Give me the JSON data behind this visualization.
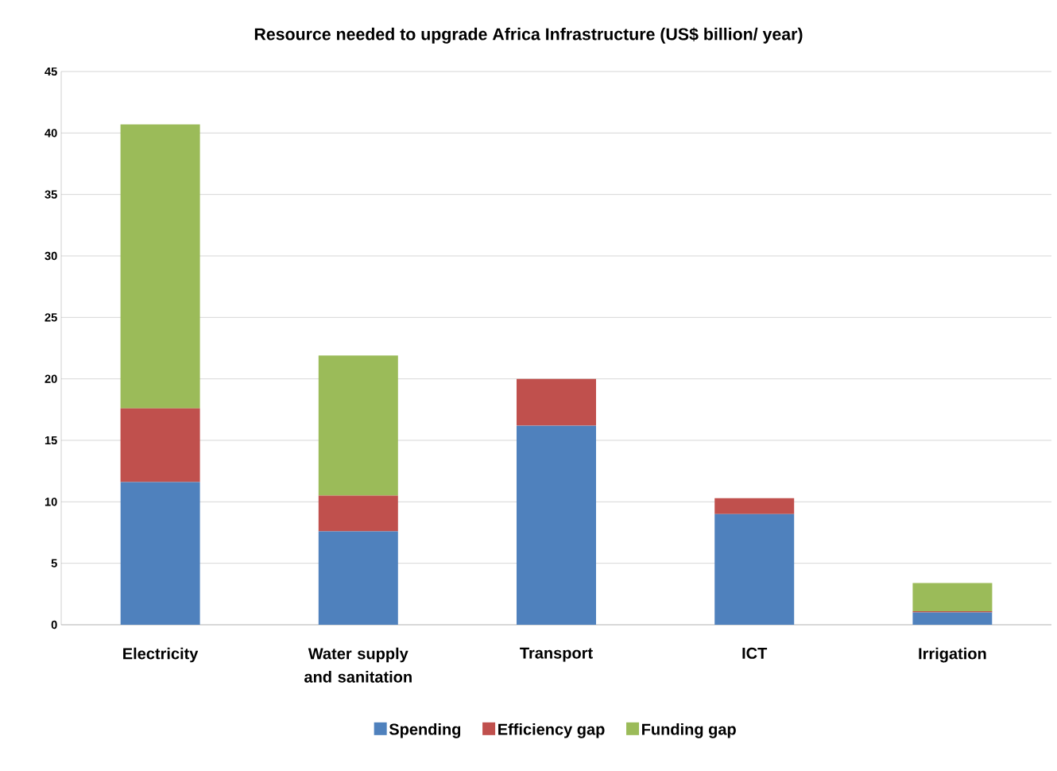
{
  "chart_data": {
    "type": "bar",
    "title": "Resource needed to upgrade Africa Infrastructure (US$ billion/ year)",
    "stacked": true,
    "categories": [
      "Electricity",
      "Water supply and sanitation",
      "Transport",
      "ICT",
      "Irrigation"
    ],
    "series": [
      {
        "name": "Spending",
        "color": "#4f81bd",
        "values": [
          11.6,
          7.6,
          16.2,
          9.0,
          1.0
        ]
      },
      {
        "name": "Efficiency gap",
        "color": "#c0504d",
        "values": [
          6.0,
          2.9,
          3.8,
          1.3,
          0.1
        ]
      },
      {
        "name": "Funding gap",
        "color": "#9bbb59",
        "values": [
          23.1,
          11.4,
          0,
          0,
          2.3
        ]
      }
    ],
    "ylim": [
      0,
      45
    ],
    "yticks": [
      0,
      5,
      10,
      15,
      20,
      25,
      30,
      35,
      40,
      45
    ],
    "grid": "y",
    "legend": "bottom"
  }
}
